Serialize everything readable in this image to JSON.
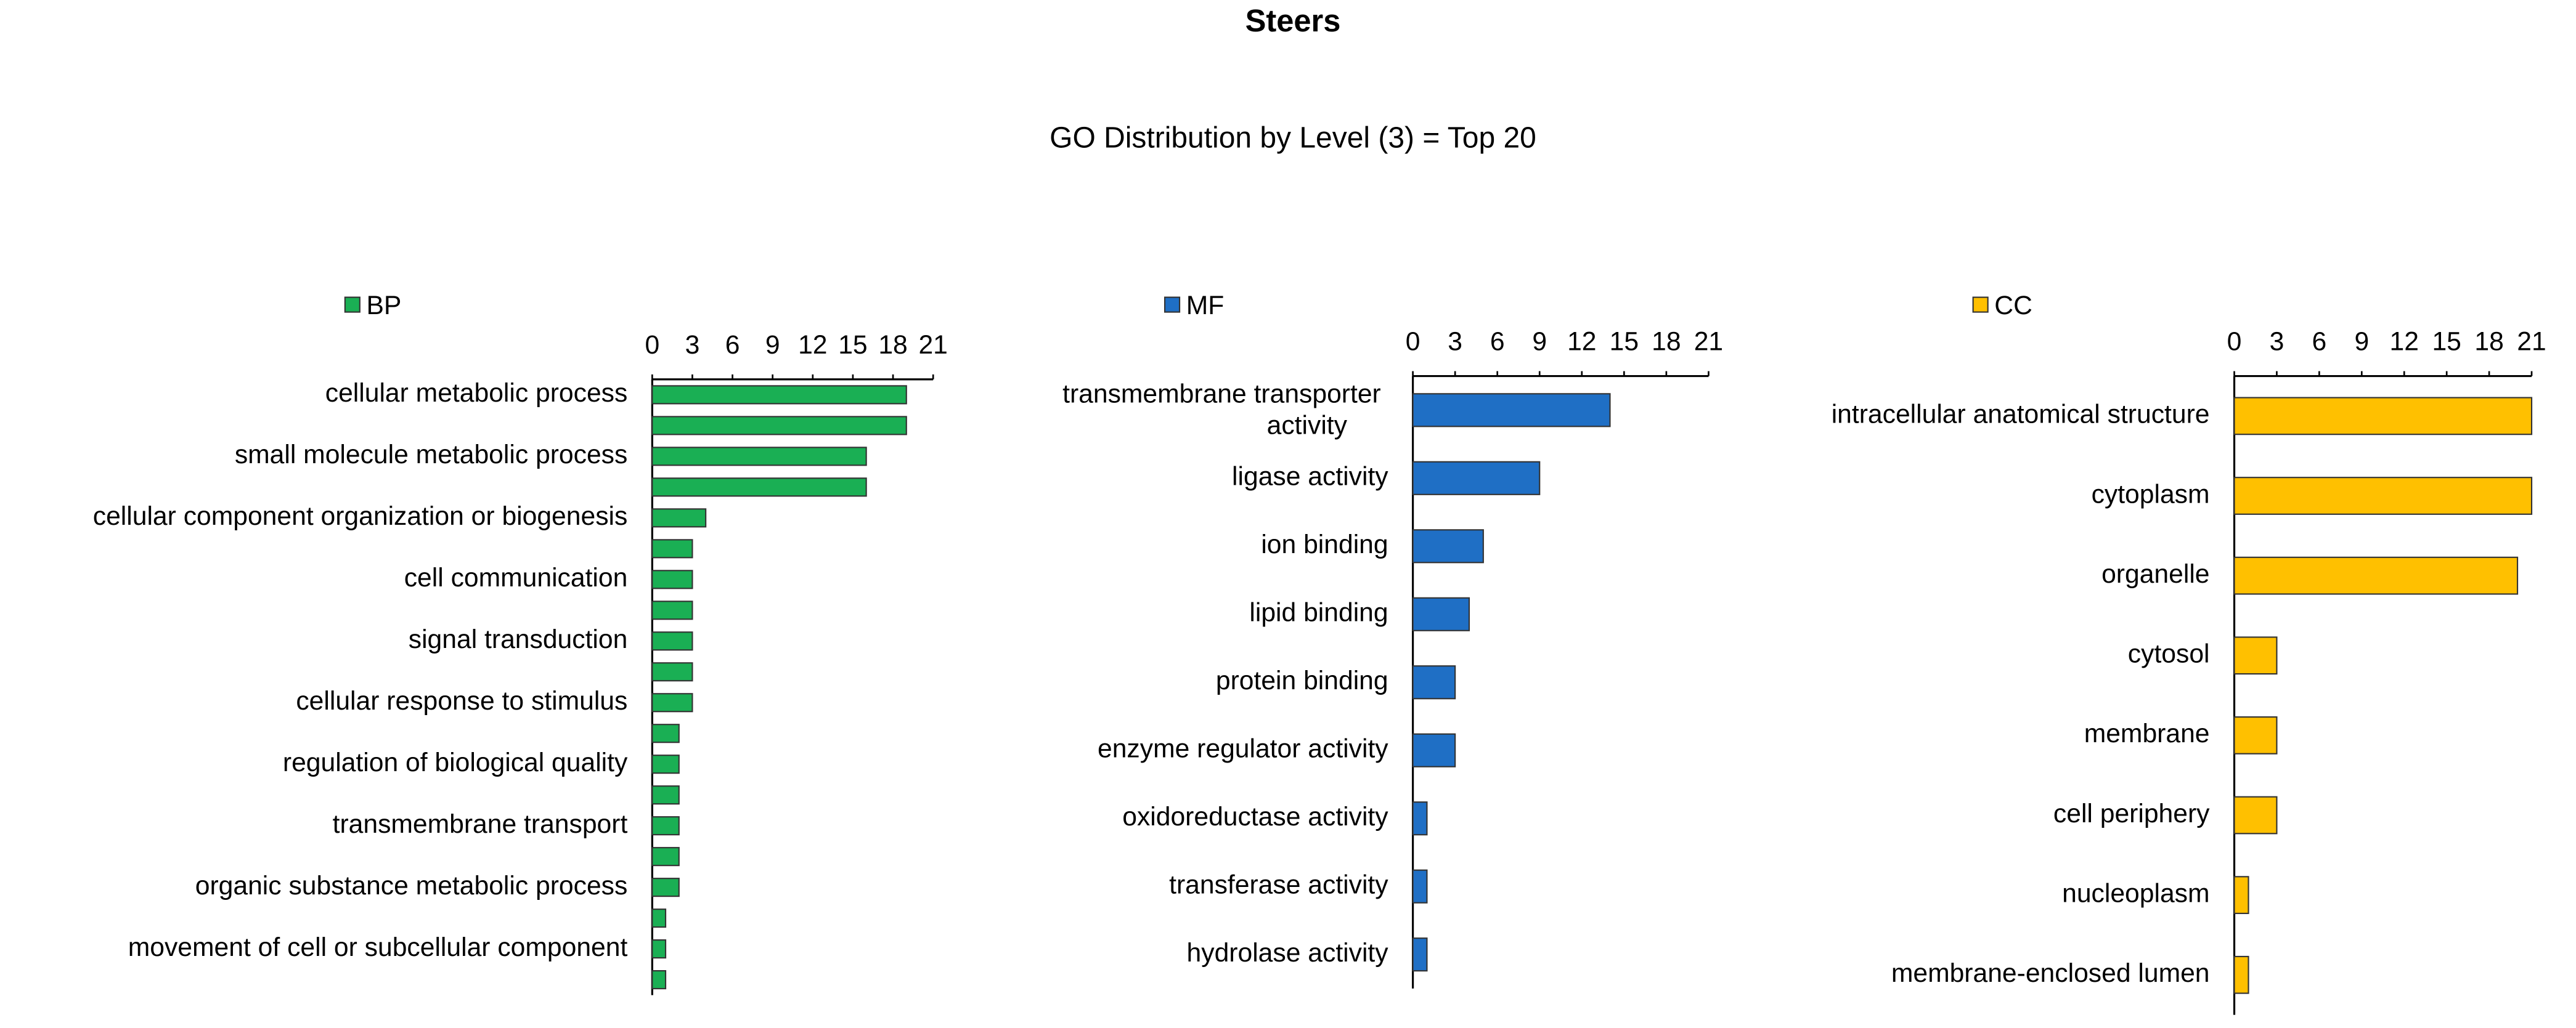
{
  "title": "Steers",
  "subtitle": "GO Distribution by Level (3) = Top 20",
  "chart_data": [
    {
      "type": "bar",
      "orientation": "horizontal",
      "categories": [
        "cellular metabolic process",
        null,
        "small molecule metabolic process",
        null,
        "cellular component organization or biogenesis",
        null,
        "cell communication",
        null,
        "signal transduction",
        null,
        "cellular response to stimulus",
        null,
        "regulation of biological quality",
        null,
        "transmembrane transport",
        null,
        "organic substance metabolic process",
        null,
        "movement of cell or subcellular component",
        null
      ],
      "series": [
        {
          "name": "BP",
          "color": "#1aaf54",
          "values": [
            19,
            19,
            16,
            16,
            4,
            3,
            3,
            3,
            3,
            3,
            3,
            2,
            2,
            2,
            2,
            2,
            2,
            1,
            1,
            1
          ]
        }
      ],
      "xlim": [
        0,
        21
      ],
      "xticks": [
        0,
        3,
        6,
        9,
        12,
        15,
        18,
        21
      ],
      "legend": "top-left"
    },
    {
      "type": "bar",
      "orientation": "horizontal",
      "categories": [
        "transmembrane transporter activity",
        "ligase activity",
        "ion binding",
        "lipid binding",
        "protein binding",
        "enzyme regulator activity",
        "oxidoreductase activity",
        "transferase activity",
        "hydrolase activity"
      ],
      "series": [
        {
          "name": "MF",
          "color": "#1f6fc5",
          "values": [
            14,
            9,
            5,
            4,
            3,
            3,
            1,
            1,
            1
          ]
        }
      ],
      "xlim": [
        0,
        21
      ],
      "xticks": [
        0,
        3,
        6,
        9,
        12,
        15,
        18,
        21
      ],
      "legend": "top-left"
    },
    {
      "type": "bar",
      "orientation": "horizontal",
      "categories": [
        "intracellular anatomical structure",
        "cytoplasm",
        "organelle",
        "cytosol",
        "membrane",
        "cell periphery",
        "nucleoplasm",
        "membrane-enclosed lumen"
      ],
      "series": [
        {
          "name": "CC",
          "color": "#ffc000",
          "values": [
            21,
            21,
            20,
            3,
            3,
            3,
            1,
            1
          ]
        }
      ],
      "xlim": [
        0,
        21
      ],
      "xticks": [
        0,
        3,
        6,
        9,
        12,
        15,
        18,
        21
      ],
      "legend": "top-left"
    }
  ]
}
